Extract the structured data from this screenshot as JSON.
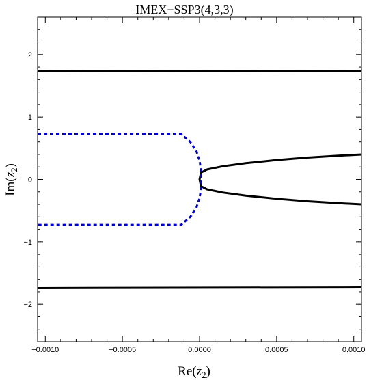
{
  "chart_data": {
    "type": "line",
    "title": "IMEX−SSP3(4,3,3)",
    "xlabel": {
      "prefix": "Re(",
      "var": "z",
      "sub": "2",
      "suffix": ")"
    },
    "ylabel": {
      "prefix": "Im(",
      "var": "z",
      "sub": "2",
      "suffix": ")"
    },
    "xlim": [
      -0.00105,
      0.00105
    ],
    "ylim": [
      -2.6,
      2.6
    ],
    "grid": false,
    "x_ticks": [
      {
        "value": -0.001,
        "label": "−0.0010"
      },
      {
        "value": -0.0005,
        "label": "−0.0005"
      },
      {
        "value": 0.0,
        "label": "0.0000"
      },
      {
        "value": 0.0005,
        "label": "0.0005"
      },
      {
        "value": 0.001,
        "label": "0.0010"
      }
    ],
    "y_ticks": [
      {
        "value": -2,
        "label": "−2"
      },
      {
        "value": -1,
        "label": "−1"
      },
      {
        "value": 0,
        "label": "0"
      },
      {
        "value": 1,
        "label": "1"
      },
      {
        "value": 2,
        "label": "2"
      }
    ],
    "series": [
      {
        "color": "#000000",
        "style": "solid",
        "x": [
          -0.00105,
          0.00105
        ],
        "y": [
          1.74,
          1.73
        ]
      },
      {
        "color": "#000000",
        "style": "solid",
        "x": [
          -0.00105,
          0.00105
        ],
        "y": [
          -1.74,
          -1.73
        ]
      },
      {
        "color": "#000000",
        "style": "solid",
        "x": [
          0.00105,
          0.0009,
          0.0007,
          0.0005,
          0.0003,
          0.00015,
          5e-05,
          1e-05,
          0.0,
          1e-05,
          5e-05,
          0.00015,
          0.0003,
          0.0005,
          0.0007,
          0.0009,
          0.00105
        ],
        "y": [
          0.4,
          0.38,
          0.35,
          0.31,
          0.26,
          0.21,
          0.16,
          0.11,
          0.0,
          -0.11,
          -0.16,
          -0.21,
          -0.26,
          -0.31,
          -0.35,
          -0.38,
          -0.4
        ]
      },
      {
        "color": "#0000cc",
        "style": "dashed",
        "x": [
          -0.00105,
          -0.00012,
          -6e-05,
          -2e-05,
          0.0,
          1e-05,
          1e-05,
          0.0,
          -2e-05,
          -6e-05,
          -0.00012,
          -0.00105
        ],
        "y": [
          0.73,
          0.73,
          0.6,
          0.45,
          0.3,
          0.15,
          -0.15,
          -0.3,
          -0.45,
          -0.6,
          -0.73,
          -0.73
        ]
      }
    ]
  }
}
